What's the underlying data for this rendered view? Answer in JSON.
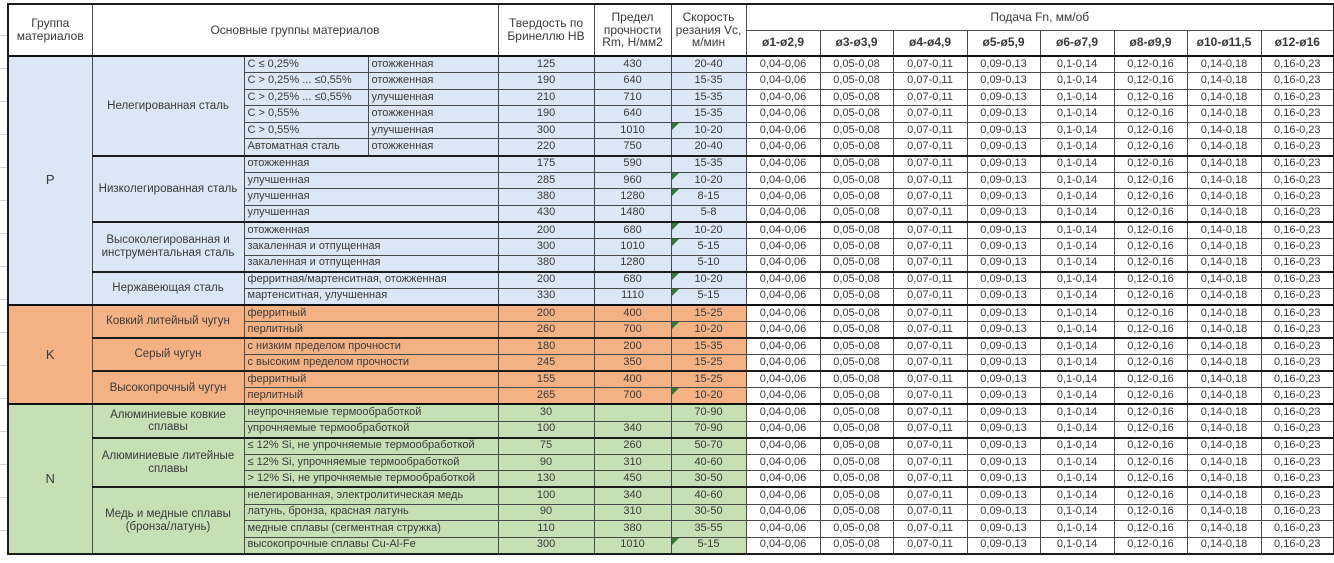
{
  "table": {
    "header": {
      "col_group": "Группа материалов",
      "col_main_groups": "Основные группы материалов",
      "col_hardness": "Твердость по Бринеллю HB",
      "col_strength": "Предел прочности Rm, Н/мм2",
      "col_speed": "Скорость резания Vc, м/мин",
      "col_feed": "Подача Fn, мм/об",
      "feed_diameters": [
        "ø1-ø2,9",
        "ø3-ø3,9",
        "ø4-ø4,9",
        "ø5-ø5,9",
        "ø6-ø7,9",
        "ø8-ø9,9",
        "ø10-ø11,5",
        "ø12-ø16"
      ]
    },
    "feed_values": [
      "0,04-0,06",
      "0,05-0,08",
      "0,07-0,11",
      "0,09-0,13",
      "0,1-0,14",
      "0,12-0,16",
      "0,14-0,18",
      "0,16-0,23"
    ],
    "note_marker_color": "#2f7a35",
    "groups": [
      {
        "code": "P",
        "color": "#DBE7F4",
        "subgroups": [
          {
            "name": "Нелегированная сталь",
            "rows": [
              {
                "cond": "C ≤ 0,25%",
                "state": "отожженная",
                "hb": "125",
                "rm": "430",
                "vc": "20-40",
                "note": false
              },
              {
                "cond": "C > 0,25% ... ≤0,55%",
                "state": "отожженная",
                "hb": "190",
                "rm": "640",
                "vc": "15-35",
                "note": false
              },
              {
                "cond": "C > 0,25% ... ≤0,55%",
                "state": "улучшенная",
                "hb": "210",
                "rm": "710",
                "vc": "15-35",
                "note": false
              },
              {
                "cond": "C > 0,55%",
                "state": "отожженная",
                "hb": "190",
                "rm": "640",
                "vc": "15-35",
                "note": false
              },
              {
                "cond": "C > 0,55%",
                "state": "улучшенная",
                "hb": "300",
                "rm": "1010",
                "vc": "10-20",
                "note": true
              },
              {
                "cond": "Автоматная сталь",
                "state": "отожженная",
                "hb": "220",
                "rm": "750",
                "vc": "20-40",
                "note": false
              }
            ]
          },
          {
            "name": "Низколегированная сталь",
            "rows": [
              {
                "cond": "отожженная",
                "state": null,
                "hb": "175",
                "rm": "590",
                "vc": "15-35",
                "note": false
              },
              {
                "cond": "улучшенная",
                "state": null,
                "hb": "285",
                "rm": "960",
                "vc": "10-20",
                "note": true
              },
              {
                "cond": "улучшенная",
                "state": null,
                "hb": "380",
                "rm": "1280",
                "vc": "8-15",
                "note": true
              },
              {
                "cond": "улучшенная",
                "state": null,
                "hb": "430",
                "rm": "1480",
                "vc": "5-8",
                "note": false
              }
            ]
          },
          {
            "name": "Высоколегированная и инструментальная сталь",
            "rows": [
              {
                "cond": "отожженная",
                "state": null,
                "hb": "200",
                "rm": "680",
                "vc": "10-20",
                "note": true
              },
              {
                "cond": "закаленная и отпущенная",
                "state": null,
                "hb": "300",
                "rm": "1010",
                "vc": "5-15",
                "note": true
              },
              {
                "cond": "закаленная и отпущенная",
                "state": null,
                "hb": "380",
                "rm": "1280",
                "vc": "5-10",
                "note": false
              }
            ]
          },
          {
            "name": "Нержавеющая сталь",
            "rows": [
              {
                "cond": "ферритная/мартенситная, отожженная",
                "state": null,
                "hb": "200",
                "rm": "680",
                "vc": "10-20",
                "note": true
              },
              {
                "cond": "мартенситная, улучшенная",
                "state": null,
                "hb": "330",
                "rm": "1110",
                "vc": "5-15",
                "note": true
              }
            ]
          }
        ]
      },
      {
        "code": "K",
        "color": "#F4B183",
        "subgroups": [
          {
            "name": "Ковкий литейный чугун",
            "rows": [
              {
                "cond": "ферритный",
                "state": null,
                "hb": "200",
                "rm": "400",
                "vc": "15-25",
                "note": false
              },
              {
                "cond": "перлитный",
                "state": null,
                "hb": "260",
                "rm": "700",
                "vc": "10-20",
                "note": true
              }
            ]
          },
          {
            "name": "Серый чугун",
            "rows": [
              {
                "cond": "с низким пределом прочности",
                "state": null,
                "hb": "180",
                "rm": "200",
                "vc": "15-35",
                "note": false
              },
              {
                "cond": "с высоким пределом прочности",
                "state": null,
                "hb": "245",
                "rm": "350",
                "vc": "15-25",
                "note": false
              }
            ]
          },
          {
            "name": "Высокопрочный чугун",
            "rows": [
              {
                "cond": "ферритный",
                "state": null,
                "hb": "155",
                "rm": "400",
                "vc": "15-25",
                "note": false
              },
              {
                "cond": "перлитный",
                "state": null,
                "hb": "265",
                "rm": "700",
                "vc": "10-20",
                "note": true
              }
            ]
          }
        ]
      },
      {
        "code": "N",
        "color": "#C6DFB4",
        "subgroups": [
          {
            "name": "Алюминиевые ковкие сплавы",
            "rows": [
              {
                "cond": "неупрочняемые термообработкой",
                "state": null,
                "hb": "30",
                "rm": "",
                "vc": "70-90",
                "note": false
              },
              {
                "cond": "упрочняемые термообработкой",
                "state": null,
                "hb": "100",
                "rm": "340",
                "vc": "70-90",
                "note": false
              }
            ]
          },
          {
            "name": "Алюминиевые литейные сплавы",
            "rows": [
              {
                "cond": "≤ 12% Si, не упрочняемые термообработкой",
                "state": null,
                "hb": "75",
                "rm": "260",
                "vc": "50-70",
                "note": false
              },
              {
                "cond": "≤ 12% Si, упрочняемые термообработкой",
                "state": null,
                "hb": "90",
                "rm": "310",
                "vc": "40-60",
                "note": false
              },
              {
                "cond": "> 12% Si, не упрочняемые термообработкой",
                "state": null,
                "hb": "130",
                "rm": "450",
                "vc": "30-50",
                "note": false
              }
            ]
          },
          {
            "name": "Медь и медные сплавы (бронза/латунь)",
            "rows": [
              {
                "cond": "нелегированная, электролитическая медь",
                "state": null,
                "hb": "100",
                "rm": "340",
                "vc": "40-60",
                "note": false
              },
              {
                "cond": "латунь, бронза, красная латунь",
                "state": null,
                "hb": "90",
                "rm": "310",
                "vc": "30-50",
                "note": false
              },
              {
                "cond": "медные сплавы (сегментная стружка)",
                "state": null,
                "hb": "110",
                "rm": "380",
                "vc": "35-55",
                "note": false
              },
              {
                "cond": "высокопрочные сплавы Cu-Al-Fe",
                "state": null,
                "hb": "300",
                "rm": "1010",
                "vc": "5-15",
                "note": true
              }
            ]
          }
        ]
      }
    ]
  }
}
